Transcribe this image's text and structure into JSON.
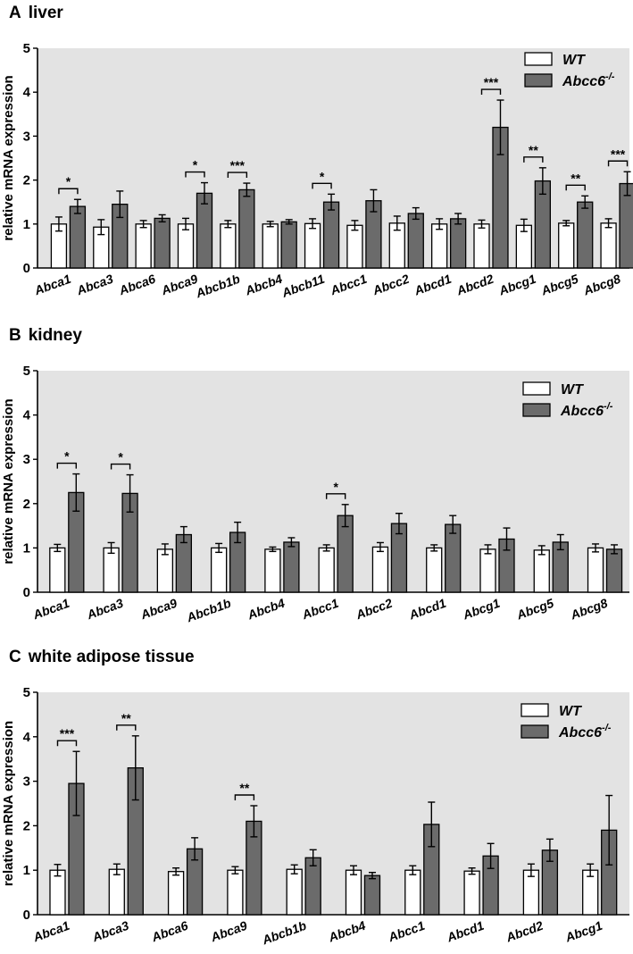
{
  "legend": {
    "wt_label": "WT",
    "ko_label": "Abcc6",
    "ko_superscript": "-/-"
  },
  "colors": {
    "wt": "#ffffff",
    "ko": "#6b6b6b",
    "plot_bg": "#e3e3e3"
  },
  "chart_data": [
    {
      "type": "bar",
      "panel": "A",
      "title": "liver",
      "ylabel": "relative mRNA expression",
      "ylim": [
        0,
        5
      ],
      "yticks": [
        0,
        1,
        2,
        3,
        4,
        5
      ],
      "categories": [
        "Abca1",
        "Abca3",
        "Abca6",
        "Abca9",
        "Abcb1b",
        "Abcb4",
        "Abcb11",
        "Abcc1",
        "Abcc2",
        "Abcd1",
        "Abcd2",
        "Abcg1",
        "Abcg5",
        "Abcg8"
      ],
      "series": [
        {
          "name": "WT",
          "values": [
            1.0,
            0.93,
            1.0,
            1.0,
            1.0,
            1.0,
            1.01,
            0.97,
            1.02,
            1.0,
            1.0,
            0.97,
            1.02,
            1.02
          ],
          "errors": [
            0.16,
            0.17,
            0.08,
            0.13,
            0.08,
            0.06,
            0.11,
            0.11,
            0.16,
            0.12,
            0.09,
            0.14,
            0.06,
            0.1
          ]
        },
        {
          "name": "Abcc6-/-",
          "values": [
            1.4,
            1.45,
            1.13,
            1.7,
            1.78,
            1.05,
            1.5,
            1.53,
            1.24,
            1.12,
            3.2,
            1.98,
            1.5,
            1.92
          ],
          "errors": [
            0.16,
            0.3,
            0.08,
            0.24,
            0.15,
            0.05,
            0.18,
            0.25,
            0.13,
            0.12,
            0.62,
            0.3,
            0.14,
            0.27
          ]
        }
      ],
      "significance": [
        {
          "category": "Abca1",
          "label": "*"
        },
        {
          "category": "Abca9",
          "label": "*"
        },
        {
          "category": "Abcb1b",
          "label": "***"
        },
        {
          "category": "Abcb11",
          "label": "*"
        },
        {
          "category": "Abcd2",
          "label": "***"
        },
        {
          "category": "Abcg1",
          "label": "**"
        },
        {
          "category": "Abcg5",
          "label": "**"
        },
        {
          "category": "Abcg8",
          "label": "***"
        }
      ]
    },
    {
      "type": "bar",
      "panel": "B",
      "title": "kidney",
      "ylabel": "relative mRNA expression",
      "ylim": [
        0,
        5
      ],
      "yticks": [
        0,
        1,
        2,
        3,
        4,
        5
      ],
      "categories": [
        "Abca1",
        "Abca3",
        "Abca9",
        "Abcb1b",
        "Abcb4",
        "Abcc1",
        "Abcc2",
        "Abcd1",
        "Abcg1",
        "Abcg5",
        "Abcg8"
      ],
      "series": [
        {
          "name": "WT",
          "values": [
            1.0,
            1.0,
            0.97,
            1.0,
            0.97,
            1.0,
            1.02,
            1.0,
            0.97,
            0.95,
            1.0
          ],
          "errors": [
            0.08,
            0.12,
            0.12,
            0.1,
            0.05,
            0.07,
            0.1,
            0.07,
            0.1,
            0.1,
            0.09
          ]
        },
        {
          "name": "Abcc6-/-",
          "values": [
            2.25,
            2.23,
            1.3,
            1.35,
            1.13,
            1.73,
            1.55,
            1.53,
            1.2,
            1.13,
            0.97
          ],
          "errors": [
            0.42,
            0.42,
            0.18,
            0.23,
            0.1,
            0.25,
            0.23,
            0.2,
            0.25,
            0.17,
            0.1
          ]
        }
      ],
      "significance": [
        {
          "category": "Abca1",
          "label": "*"
        },
        {
          "category": "Abca3",
          "label": "*"
        },
        {
          "category": "Abcc1",
          "label": "*"
        }
      ]
    },
    {
      "type": "bar",
      "panel": "C",
      "title": "white adipose tissue",
      "ylabel": "relative mRNA expression",
      "ylim": [
        0,
        5
      ],
      "yticks": [
        0,
        1,
        2,
        3,
        4,
        5
      ],
      "categories": [
        "Abca1",
        "Abca3",
        "Abca6",
        "Abca9",
        "Abcb1b",
        "Abcb4",
        "Abcc1",
        "Abcd1",
        "Abcd2",
        "Abcg1"
      ],
      "series": [
        {
          "name": "WT",
          "values": [
            1.0,
            1.02,
            0.97,
            1.0,
            1.02,
            1.0,
            1.0,
            0.98,
            1.0,
            1.0
          ],
          "errors": [
            0.13,
            0.12,
            0.08,
            0.08,
            0.1,
            0.1,
            0.1,
            0.07,
            0.14,
            0.14
          ]
        },
        {
          "name": "Abcc6-/-",
          "values": [
            2.95,
            3.3,
            1.48,
            2.1,
            1.28,
            0.88,
            2.03,
            1.32,
            1.45,
            1.9
          ],
          "errors": [
            0.72,
            0.72,
            0.25,
            0.35,
            0.18,
            0.07,
            0.5,
            0.28,
            0.25,
            0.78
          ]
        }
      ],
      "significance": [
        {
          "category": "Abca1",
          "label": "***"
        },
        {
          "category": "Abca3",
          "label": "**"
        },
        {
          "category": "Abca9",
          "label": "**"
        }
      ]
    }
  ]
}
